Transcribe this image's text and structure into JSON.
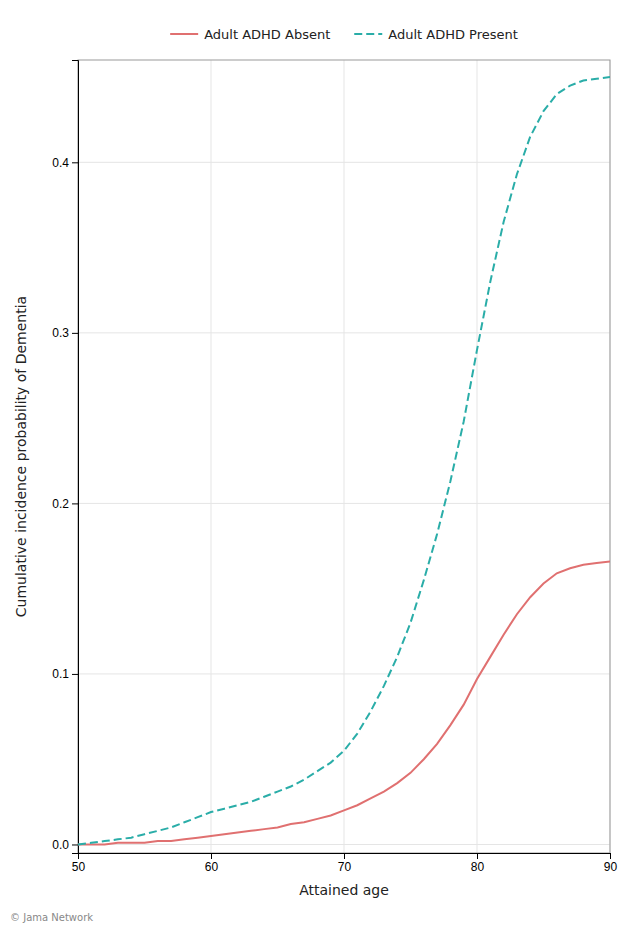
{
  "chart_data": {
    "type": "line",
    "xlabel": "Attained age",
    "ylabel": "Cumulative incidence probability of Dementia",
    "x": [
      50,
      51,
      52,
      53,
      54,
      55,
      56,
      57,
      58,
      59,
      60,
      61,
      62,
      63,
      64,
      65,
      66,
      67,
      68,
      69,
      70,
      71,
      72,
      73,
      74,
      75,
      76,
      77,
      78,
      79,
      80,
      81,
      82,
      83,
      84,
      85,
      86,
      87,
      88,
      89,
      90
    ],
    "series": [
      {
        "name": "Adult ADHD Absent",
        "color": "#E07070",
        "line_style": "solid",
        "values": [
          0.0,
          0.0,
          0.0,
          0.001,
          0.001,
          0.001,
          0.002,
          0.002,
          0.003,
          0.004,
          0.005,
          0.006,
          0.007,
          0.008,
          0.009,
          0.01,
          0.012,
          0.013,
          0.015,
          0.017,
          0.02,
          0.023,
          0.027,
          0.031,
          0.036,
          0.042,
          0.05,
          0.059,
          0.07,
          0.082,
          0.097,
          0.11,
          0.123,
          0.135,
          0.145,
          0.153,
          0.159,
          0.162,
          0.164,
          0.165,
          0.166
        ]
      },
      {
        "name": "Adult ADHD Present",
        "color": "#2AADA8",
        "line_style": "dashed",
        "values": [
          0.0,
          0.001,
          0.002,
          0.003,
          0.004,
          0.006,
          0.008,
          0.01,
          0.013,
          0.016,
          0.019,
          0.021,
          0.023,
          0.025,
          0.028,
          0.031,
          0.034,
          0.038,
          0.043,
          0.048,
          0.055,
          0.065,
          0.078,
          0.093,
          0.11,
          0.13,
          0.155,
          0.182,
          0.213,
          0.248,
          0.29,
          0.33,
          0.365,
          0.393,
          0.415,
          0.43,
          0.44,
          0.445,
          0.448,
          0.449,
          0.45
        ]
      }
    ],
    "xlim": [
      50,
      90
    ],
    "ylim": [
      -0.005,
      0.46
    ],
    "xticks": [
      50,
      60,
      70,
      80,
      90
    ],
    "yticks": [
      {
        "value": 0,
        "label": "0.0"
      },
      0.1,
      0.2,
      0.3,
      0.4
    ],
    "grid": true,
    "legend": "top",
    "annotations": [
      "© Jama Network"
    ]
  }
}
